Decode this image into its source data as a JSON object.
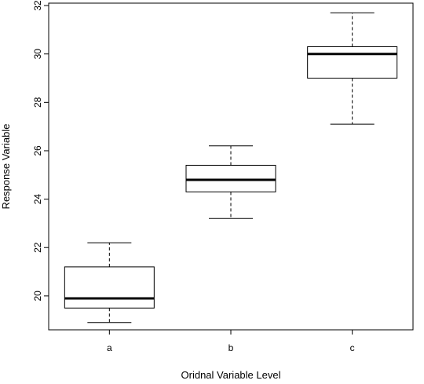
{
  "chart_data": {
    "type": "box",
    "title": "",
    "xlabel": "Oridnal Variable Level",
    "ylabel": "Response Variable",
    "categories": [
      "a",
      "b",
      "c"
    ],
    "boxes": [
      {
        "category": "a",
        "min": 18.9,
        "q1": 19.5,
        "median": 19.9,
        "q3": 21.2,
        "max": 22.2
      },
      {
        "category": "b",
        "min": 23.2,
        "q1": 24.3,
        "median": 24.8,
        "q3": 25.4,
        "max": 26.2
      },
      {
        "category": "c",
        "min": 27.1,
        "q1": 29.0,
        "median": 30.0,
        "q3": 30.3,
        "max": 31.7
      }
    ],
    "ylim": [
      18.6,
      32.1
    ],
    "yticks": [
      20,
      22,
      24,
      26,
      28,
      30,
      32
    ],
    "grid": false,
    "legend": "none"
  }
}
